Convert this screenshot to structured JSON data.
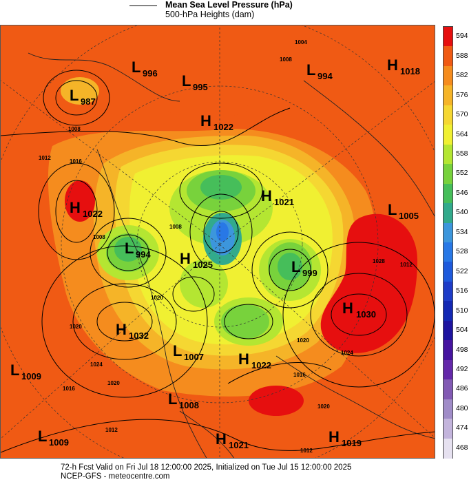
{
  "legend": {
    "line1": "Mean Sea Level Pressure (hPa)",
    "line2": "500-hPa Heights (dam)"
  },
  "footer": {
    "line1": "72-h Fcst Valid on Fri Jul 18 12:00:00 2025, Initialized on Tue Jul 15 12:00:00 2025",
    "line2": "NCEP-GFS  - meteocentre.com"
  },
  "colorbar": {
    "labels": [
      "594",
      "588",
      "582",
      "576",
      "570",
      "564",
      "558",
      "552",
      "546",
      "540",
      "534",
      "528",
      "522",
      "516",
      "510",
      "504",
      "498",
      "492",
      "486",
      "480",
      "474",
      "468"
    ],
    "colors": [
      "#e60f0f",
      "#f05a14",
      "#f58c1e",
      "#f5b428",
      "#f5d732",
      "#f0f032",
      "#b4e632",
      "#78d23c",
      "#46be5a",
      "#32aa8c",
      "#3c96dc",
      "#2878e6",
      "#1e5adc",
      "#1e3cc8",
      "#1428b4",
      "#1e14a0",
      "#4614a0",
      "#6428aa",
      "#825ab4",
      "#a08cc8",
      "#c3b4dc",
      "#e6e1f0"
    ]
  },
  "pressure_centers": [
    {
      "type": "L",
      "value": "996"
    },
    {
      "type": "L",
      "value": "995"
    },
    {
      "type": "L",
      "value": "994"
    },
    {
      "type": "H",
      "value": "1018"
    },
    {
      "type": "L",
      "value": "987"
    },
    {
      "type": "H",
      "value": "1022"
    },
    {
      "type": "H",
      "value": "1022"
    },
    {
      "type": "H",
      "value": "1021"
    },
    {
      "type": "L",
      "value": "1005"
    },
    {
      "type": "L",
      "value": "994"
    },
    {
      "type": "H",
      "value": "1025"
    },
    {
      "type": "L",
      "value": "999"
    },
    {
      "type": "H",
      "value": "1030"
    },
    {
      "type": "H",
      "value": "1032"
    },
    {
      "type": "L",
      "value": "1007"
    },
    {
      "type": "H",
      "value": "1022"
    },
    {
      "type": "L",
      "value": "1009"
    },
    {
      "type": "L",
      "value": "1008"
    },
    {
      "type": "L",
      "value": "1009"
    },
    {
      "type": "H",
      "value": "1021"
    },
    {
      "type": "H",
      "value": "1019"
    }
  ],
  "isobar_labels": [
    "1004",
    "1008",
    "1008",
    "1012",
    "1016",
    "1008",
    "1008",
    "1020",
    "1020",
    "1024",
    "1020",
    "1016",
    "1012",
    "1012",
    "1028",
    "1024",
    "1020",
    "1016",
    "1012",
    "1020"
  ]
}
